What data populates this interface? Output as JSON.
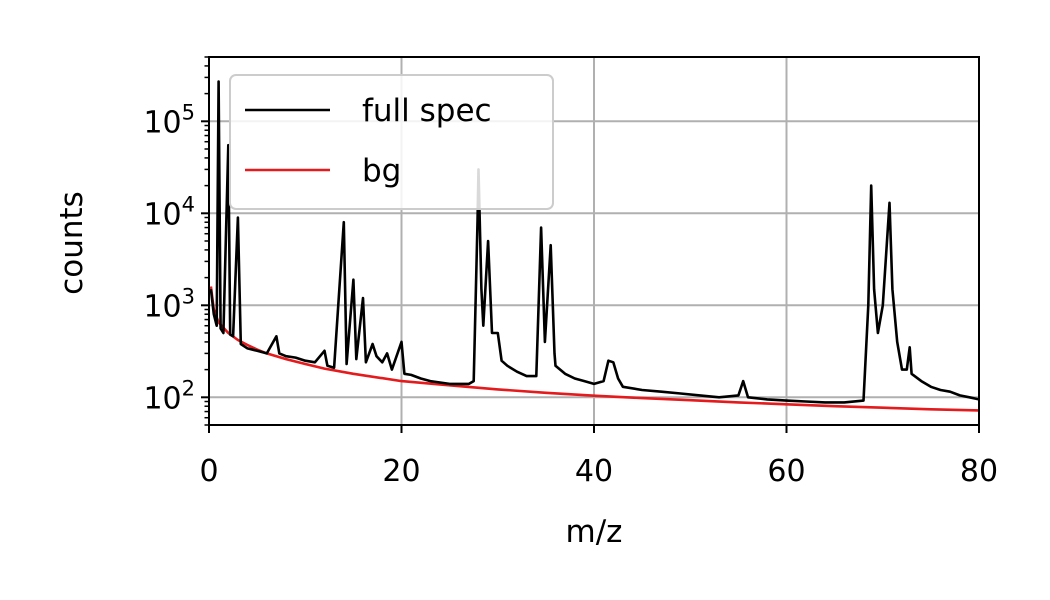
{
  "chart_data": {
    "type": "line",
    "title": "",
    "xlabel": "m/z",
    "ylabel": "counts",
    "xlim": [
      0,
      80
    ],
    "ylim": [
      50,
      500000
    ],
    "yscale": "log",
    "grid": true,
    "legend_position": "top-left",
    "x_ticks": [
      "0",
      "20",
      "40",
      "60",
      "80"
    ],
    "x_tick_values": [
      0,
      20,
      40,
      60,
      80
    ],
    "y_ticks": [
      {
        "value": 100,
        "base": "10",
        "exp": "2"
      },
      {
        "value": 1000,
        "base": "10",
        "exp": "3"
      },
      {
        "value": 10000,
        "base": "10",
        "exp": "4"
      },
      {
        "value": 100000,
        "base": "10",
        "exp": "5"
      }
    ],
    "series": [
      {
        "name": "full spec",
        "color": "#000000",
        "points": [
          [
            0.2,
            1500
          ],
          [
            0.5,
            800
          ],
          [
            0.8,
            600
          ],
          [
            1.0,
            270000
          ],
          [
            1.2,
            560
          ],
          [
            1.5,
            500
          ],
          [
            2.0,
            55000
          ],
          [
            2.2,
            480
          ],
          [
            2.5,
            460
          ],
          [
            3.0,
            9000
          ],
          [
            3.3,
            380
          ],
          [
            4,
            340
          ],
          [
            5,
            320
          ],
          [
            6,
            300
          ],
          [
            7.0,
            460
          ],
          [
            7.3,
            300
          ],
          [
            8,
            280
          ],
          [
            9,
            270
          ],
          [
            10,
            250
          ],
          [
            11,
            240
          ],
          [
            12.0,
            320
          ],
          [
            12.3,
            220
          ],
          [
            13,
            210
          ],
          [
            14.0,
            8000
          ],
          [
            14.3,
            230
          ],
          [
            15.0,
            1900
          ],
          [
            15.3,
            260
          ],
          [
            16.0,
            1200
          ],
          [
            16.3,
            240
          ],
          [
            17.0,
            380
          ],
          [
            17.4,
            280
          ],
          [
            18,
            240
          ],
          [
            18.5,
            300
          ],
          [
            19,
            200
          ],
          [
            20.0,
            400
          ],
          [
            20.3,
            180
          ],
          [
            21,
            175
          ],
          [
            22,
            160
          ],
          [
            23,
            150
          ],
          [
            24,
            145
          ],
          [
            25,
            140
          ],
          [
            26,
            140
          ],
          [
            27,
            140
          ],
          [
            27.5,
            150
          ],
          [
            27.9,
            8000
          ],
          [
            28.0,
            30000
          ],
          [
            28.3,
            1500
          ],
          [
            28.5,
            600
          ],
          [
            29.0,
            5000
          ],
          [
            29.4,
            500
          ],
          [
            30.0,
            500
          ],
          [
            30.4,
            250
          ],
          [
            31,
            220
          ],
          [
            32,
            190
          ],
          [
            33,
            170
          ],
          [
            34,
            170
          ],
          [
            34.5,
            7000
          ],
          [
            34.9,
            400
          ],
          [
            35.5,
            4500
          ],
          [
            35.9,
            300
          ],
          [
            36,
            220
          ],
          [
            37,
            180
          ],
          [
            38,
            160
          ],
          [
            39,
            150
          ],
          [
            40,
            140
          ],
          [
            41,
            150
          ],
          [
            41.5,
            250
          ],
          [
            42,
            240
          ],
          [
            42.5,
            160
          ],
          [
            43,
            130
          ],
          [
            45,
            120
          ],
          [
            47,
            115
          ],
          [
            49,
            110
          ],
          [
            51,
            105
          ],
          [
            53,
            100
          ],
          [
            55,
            105
          ],
          [
            55.5,
            150
          ],
          [
            56,
            100
          ],
          [
            58,
            95
          ],
          [
            60,
            92
          ],
          [
            62,
            90
          ],
          [
            64,
            88
          ],
          [
            66,
            88
          ],
          [
            68,
            92
          ],
          [
            68.5,
            1000
          ],
          [
            68.8,
            20000
          ],
          [
            69.1,
            1500
          ],
          [
            69.5,
            500
          ],
          [
            70,
            1000
          ],
          [
            70.7,
            13000
          ],
          [
            71.0,
            1500
          ],
          [
            71.5,
            400
          ],
          [
            72,
            200
          ],
          [
            72.5,
            200
          ],
          [
            72.8,
            350
          ],
          [
            73,
            180
          ],
          [
            74,
            150
          ],
          [
            75,
            130
          ],
          [
            76,
            120
          ],
          [
            77,
            115
          ],
          [
            78,
            105
          ],
          [
            79,
            100
          ],
          [
            80,
            95
          ]
        ]
      },
      {
        "name": "bg",
        "color": "#e41a1c",
        "points": [
          [
            0.2,
            1600
          ],
          [
            0.5,
            900
          ],
          [
            1,
            650
          ],
          [
            2,
            500
          ],
          [
            3,
            420
          ],
          [
            4,
            370
          ],
          [
            5,
            330
          ],
          [
            6,
            300
          ],
          [
            8,
            260
          ],
          [
            10,
            230
          ],
          [
            12,
            205
          ],
          [
            15,
            180
          ],
          [
            20,
            150
          ],
          [
            25,
            135
          ],
          [
            30,
            122
          ],
          [
            35,
            112
          ],
          [
            40,
            104
          ],
          [
            45,
            98
          ],
          [
            50,
            93
          ],
          [
            55,
            88
          ],
          [
            60,
            84
          ],
          [
            65,
            80
          ],
          [
            70,
            77
          ],
          [
            75,
            74
          ],
          [
            80,
            72
          ]
        ]
      }
    ]
  }
}
